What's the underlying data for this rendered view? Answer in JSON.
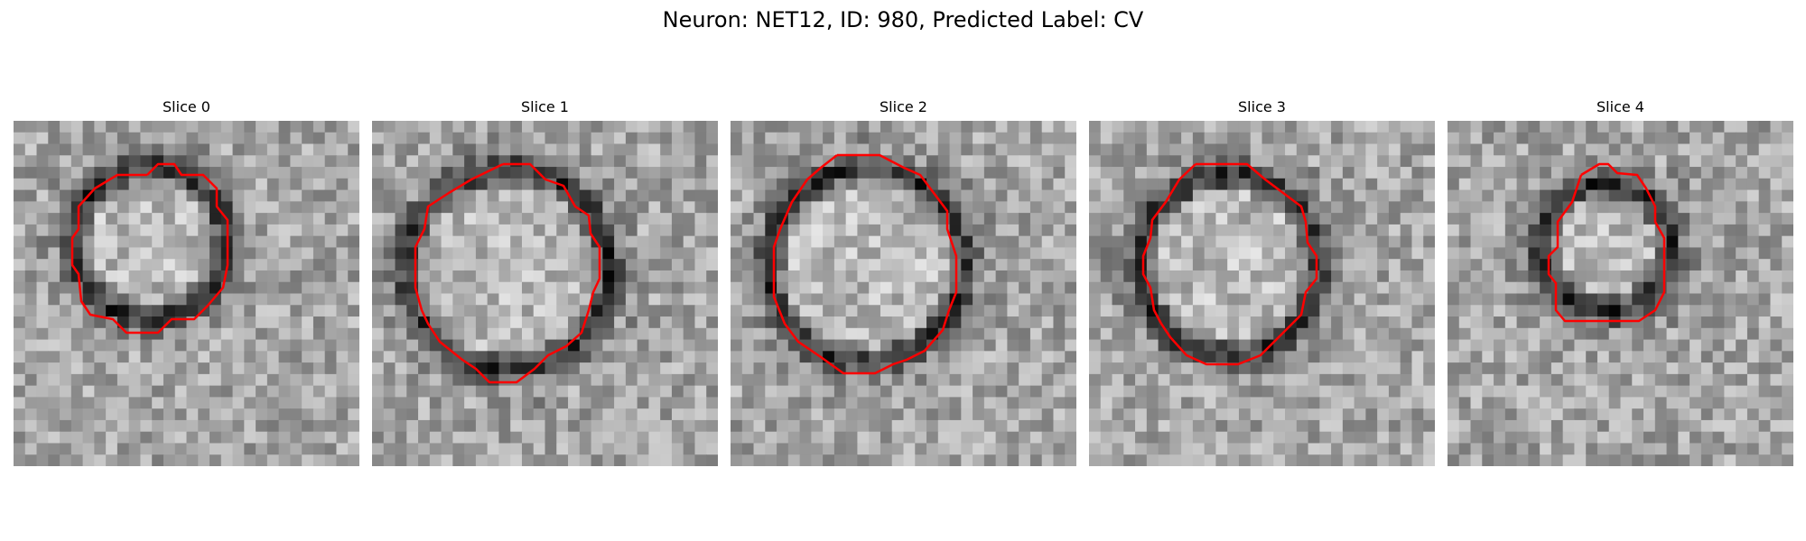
{
  "figure": {
    "title": "Neuron: NET12, ID: 980, Predicted Label: CV"
  },
  "panels": [
    {
      "title": "Slice 0"
    },
    {
      "title": "Slice 1"
    },
    {
      "title": "Slice 2"
    },
    {
      "title": "Slice 3"
    },
    {
      "title": "Slice 4"
    }
  ],
  "colors": {
    "contour": "#ff0000",
    "background": "#ffffff"
  }
}
